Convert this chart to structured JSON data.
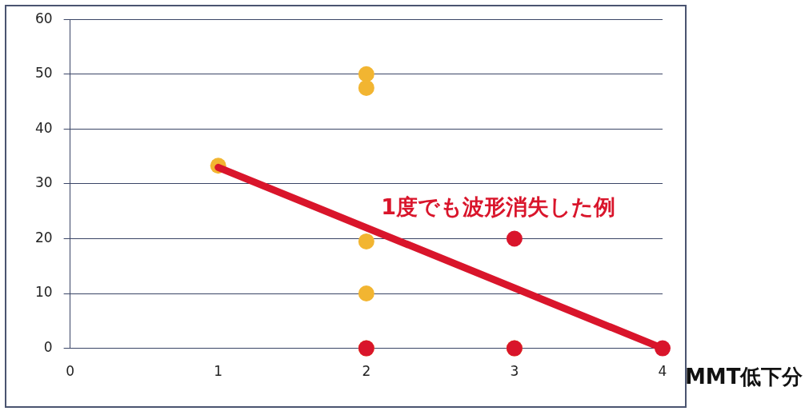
{
  "chart_data": {
    "type": "scatter",
    "xlabel": "MMT低下分",
    "xlim": [
      0,
      4
    ],
    "xticks": [
      0,
      1,
      2,
      3,
      4
    ],
    "ylim": [
      0,
      60
    ],
    "yticks": [
      0,
      10,
      20,
      30,
      40,
      50,
      60
    ],
    "grid": "y",
    "legend": false,
    "marker": "circle",
    "series": [
      {
        "color": "#f2b531",
        "x": [
          1,
          2,
          2,
          2,
          2,
          2,
          3
        ],
        "values": [
          33.3,
          50,
          47.5,
          19.5,
          10,
          0,
          0
        ]
      },
      {
        "color": "#d9152b",
        "x": [
          2,
          3,
          3,
          4
        ],
        "values": [
          0,
          20,
          0,
          0
        ]
      },
      {
        "type": "line",
        "marker": "none",
        "color": "#d9152b",
        "x": [
          1,
          4
        ],
        "values": [
          33,
          0
        ]
      }
    ],
    "annotations": [
      "1度でも波形消失した例"
    ]
  }
}
